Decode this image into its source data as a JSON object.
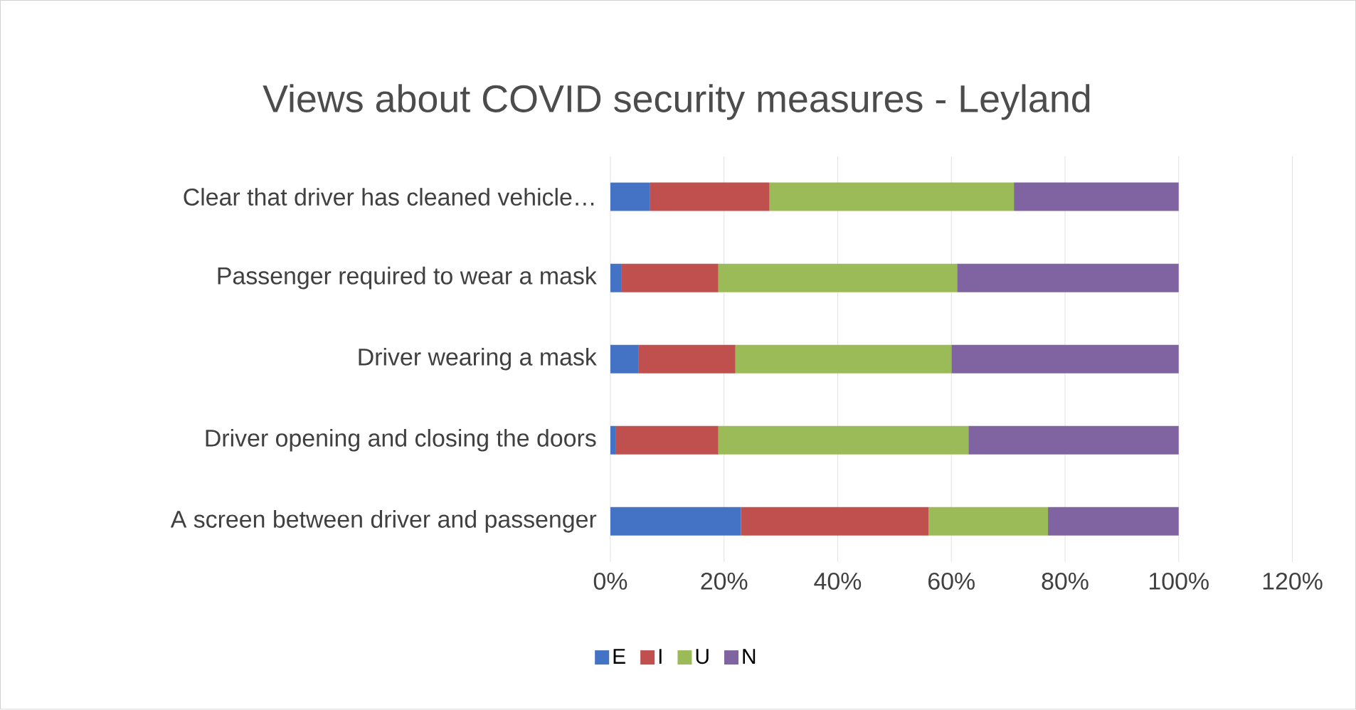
{
  "chart_data": {
    "type": "bar",
    "title": "Views about COVID security measures - Leyland",
    "orientation": "horizontal",
    "stacked": true,
    "categories": [
      "Clear that driver has cleaned vehicle…",
      "Passenger required to wear a mask",
      "Driver wearing a mask",
      "Driver opening and closing the doors",
      "A screen between driver and passenger"
    ],
    "series": [
      {
        "name": "E",
        "color": "#4472c4",
        "values": [
          7,
          2,
          5,
          1,
          23
        ]
      },
      {
        "name": "I",
        "color": "#c0504d",
        "values": [
          21,
          17,
          17,
          18,
          33
        ]
      },
      {
        "name": "U",
        "color": "#9bbb59",
        "values": [
          43,
          42,
          38,
          44,
          21
        ]
      },
      {
        "name": "N",
        "color": "#8064a2",
        "values": [
          29,
          39,
          40,
          37,
          23
        ]
      }
    ],
    "xlim": [
      0,
      120
    ],
    "xticks": [
      {
        "value": 0,
        "label": "0%"
      },
      {
        "value": 20,
        "label": "20%"
      },
      {
        "value": 40,
        "label": "40%"
      },
      {
        "value": 60,
        "label": "60%"
      },
      {
        "value": 80,
        "label": "80%"
      },
      {
        "value": 100,
        "label": "100%"
      },
      {
        "value": 120,
        "label": "120%"
      }
    ],
    "grid": "x",
    "legend": "bottom"
  }
}
